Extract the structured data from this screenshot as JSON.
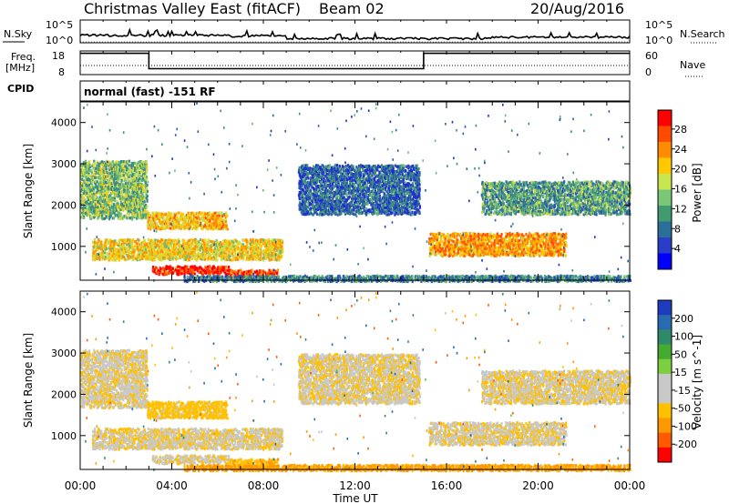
{
  "header": {
    "station": "Christmas Valley East (fitACF)",
    "beam": "Beam 02",
    "date": "20/Aug/2016"
  },
  "noise_panel": {
    "left_label": "N.Sky",
    "right_label": "N.Search",
    "left_ticks": [
      "10^5",
      "10^0"
    ],
    "right_ticks": [
      "10^5",
      "10^0"
    ]
  },
  "freq_panel": {
    "left_label_1": "Freq.",
    "left_label_2": "[MHz]",
    "left_ticks": [
      "18",
      "8"
    ],
    "right_label": "Nave",
    "right_ticks": [
      "60",
      "0"
    ]
  },
  "cpid": {
    "label": "CPID",
    "value": "normal (fast) -151 RF"
  },
  "power_colorbar": {
    "label": "Power [dB]",
    "ticks": [
      "28",
      "24",
      "20",
      "16",
      "12",
      "8",
      "4"
    ],
    "colors": [
      "#ff0000",
      "#ff4b00",
      "#ff8c00",
      "#ffc800",
      "#c8e650",
      "#78c878",
      "#409c70",
      "#2a6e9a",
      "#2a3cc8",
      "#0000ff"
    ]
  },
  "velocity_colorbar": {
    "label": "Velocity [m s^-1]",
    "ticks": [
      "200",
      "100",
      "50",
      "15",
      "-15",
      "-50",
      "-100",
      "-200"
    ],
    "colors": [
      "#1e3cbe",
      "#2a6ab0",
      "#2e8a6a",
      "#44aa30",
      "#7cd040",
      "#c8c8c8",
      "#c8c8c8",
      "#ffc000",
      "#ff9800",
      "#ff5a00",
      "#ff0000"
    ]
  },
  "chart_data": {
    "type": "heatmap",
    "xlabel": "Time UT",
    "x_ticks": [
      "00:00",
      "04:00",
      "08:00",
      "12:00",
      "16:00",
      "20:00",
      "00:00"
    ],
    "xlim_hours": [
      0,
      24
    ],
    "ylabel": "Slant Range [km]",
    "y_ticks": [
      1000,
      2000,
      3000,
      4000
    ],
    "ylim_km": [
      180,
      4500
    ],
    "frequency_mhz_steps": [
      {
        "start_h": 0,
        "end_h": 3,
        "mhz": 17
      },
      {
        "start_h": 3,
        "end_h": 15,
        "mhz": 10.5
      },
      {
        "start_h": 15,
        "end_h": 24,
        "mhz": 17
      }
    ],
    "scatter_regions": [
      {
        "t_start": 0.0,
        "t_end": 2.9,
        "r_start": 1700,
        "r_end": 3100,
        "power_db": 14,
        "velocity": -10
      },
      {
        "t_start": 2.9,
        "t_end": 6.4,
        "r_start": 1450,
        "r_end": 1850,
        "power_db": 20,
        "velocity": -30
      },
      {
        "t_start": 0.5,
        "t_end": 8.8,
        "r_start": 700,
        "r_end": 1200,
        "power_db": 19,
        "velocity": -10
      },
      {
        "t_start": 3.1,
        "t_end": 6.6,
        "r_start": 350,
        "r_end": 550,
        "power_db": 28,
        "velocity": -10
      },
      {
        "t_start": 6.5,
        "t_end": 8.6,
        "r_start": 220,
        "r_end": 460,
        "power_db": 26,
        "velocity": -40
      },
      {
        "t_start": 4.5,
        "t_end": 24.0,
        "r_start": 180,
        "r_end": 320,
        "power_db": 10,
        "velocity": -60
      },
      {
        "t_start": 9.5,
        "t_end": 14.8,
        "r_start": 1800,
        "r_end": 3000,
        "power_db": 8,
        "velocity": -10
      },
      {
        "t_start": 15.2,
        "t_end": 21.2,
        "r_start": 800,
        "r_end": 1350,
        "power_db": 22,
        "velocity": -10
      },
      {
        "t_start": 17.5,
        "t_end": 24.0,
        "r_start": 1800,
        "r_end": 2600,
        "power_db": 12,
        "velocity": -10
      }
    ]
  }
}
